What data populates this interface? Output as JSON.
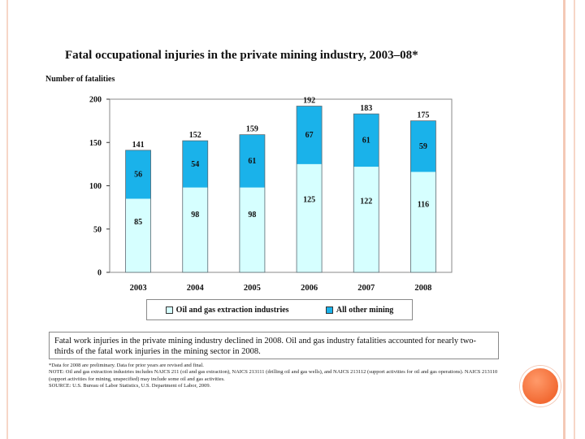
{
  "chart_data": {
    "type": "bar",
    "stacked": true,
    "title": "Fatal occupational injuries in the private mining industry, 2003–08*",
    "ylabel": "Number of fatalities",
    "xlabel": "",
    "ylim": [
      0,
      200
    ],
    "yticks": [
      0,
      50,
      100,
      150,
      200
    ],
    "grid": false,
    "legend_position": "bottom",
    "categories": [
      "2003",
      "2004",
      "2005",
      "2006",
      "2007",
      "2008"
    ],
    "series": [
      {
        "name": "Oil and gas extraction industries",
        "values": [
          85,
          98,
          98,
          125,
          122,
          116
        ],
        "color": "#d6ffff"
      },
      {
        "name": "All other mining",
        "values": [
          56,
          54,
          61,
          67,
          61,
          59
        ],
        "color": "#1ab2ea"
      }
    ],
    "totals": [
      141,
      152,
      159,
      192,
      183,
      175
    ]
  },
  "note_box": {
    "text": "Fatal work injuries in the private mining industry declined in 2008. Oil and gas industry fatalities accounted for nearly two-thirds of the fatal work injuries in the mining sector in 2008."
  },
  "footnotes": [
    "*Data for 2008 are preliminary. Data for prior years are revised and final.",
    "NOTE: Oil and gas extraction industries includes NAICS 211 (oil and gas extraction), NAICS 213111 (drilling oil and gas wells), and NAICS 213112 (support activities for oil and gas operations). NAICS 213110 (support activities for mining, unspecified) may include some oil and gas activities.",
    "SOURCE: U.S. Bureau of Labor Statistics, U.S. Department of Labor, 2009."
  ]
}
